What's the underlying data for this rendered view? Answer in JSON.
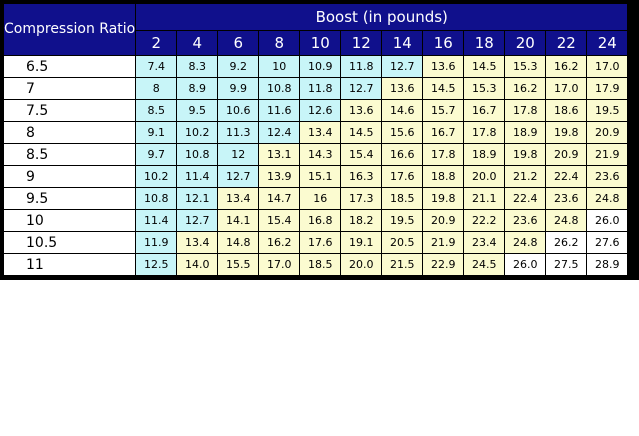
{
  "chart_data": {
    "type": "table",
    "row_header": "Compression Ratio",
    "column_group_header": "Boost (in pounds)",
    "columns": [
      "2",
      "4",
      "6",
      "8",
      "10",
      "12",
      "14",
      "16",
      "18",
      "20",
      "22",
      "24"
    ],
    "rows": [
      {
        "label": "6.5",
        "values": [
          "7.4",
          "8.3",
          "9.2",
          "10",
          "10.9",
          "11.8",
          "12.7",
          "13.6",
          "14.5",
          "15.3",
          "16.2",
          "17.0"
        ]
      },
      {
        "label": "7",
        "values": [
          "8",
          "8.9",
          "9.9",
          "10.8",
          "11.8",
          "12.7",
          "13.6",
          "14.5",
          "15.3",
          "16.2",
          "17.0",
          "17.9"
        ]
      },
      {
        "label": "7.5",
        "values": [
          "8.5",
          "9.5",
          "10.6",
          "11.6",
          "12.6",
          "13.6",
          "14.6",
          "15.7",
          "16.7",
          "17.8",
          "18.6",
          "19.5"
        ]
      },
      {
        "label": "8",
        "values": [
          "9.1",
          "10.2",
          "11.3",
          "12.4",
          "13.4",
          "14.5",
          "15.6",
          "16.7",
          "17.8",
          "18.9",
          "19.8",
          "20.9"
        ]
      },
      {
        "label": "8.5",
        "values": [
          "9.7",
          "10.8",
          "12",
          "13.1",
          "14.3",
          "15.4",
          "16.6",
          "17.8",
          "18.9",
          "19.8",
          "20.9",
          "21.9"
        ]
      },
      {
        "label": "9",
        "values": [
          "10.2",
          "11.4",
          "12.7",
          "13.9",
          "15.1",
          "16.3",
          "17.6",
          "18.8",
          "20.0",
          "21.2",
          "22.4",
          "23.6"
        ]
      },
      {
        "label": "9.5",
        "values": [
          "10.8",
          "12.1",
          "13.4",
          "14.7",
          "16",
          "17.3",
          "18.5",
          "19.8",
          "21.1",
          "22.4",
          "23.6",
          "24.8"
        ]
      },
      {
        "label": "10",
        "values": [
          "11.4",
          "12.7",
          "14.1",
          "15.4",
          "16.8",
          "18.2",
          "19.5",
          "20.9",
          "22.2",
          "23.6",
          "24.8",
          "26.0"
        ]
      },
      {
        "label": "10.5",
        "values": [
          "11.9",
          "13.4",
          "14.8",
          "16.2",
          "17.6",
          "19.1",
          "20.5",
          "21.9",
          "23.4",
          "24.8",
          "26.2",
          "27.6"
        ]
      },
      {
        "label": "11",
        "values": [
          "12.5",
          "14.0",
          "15.5",
          "17.0",
          "18.5",
          "20.0",
          "21.5",
          "22.9",
          "24.5",
          "26.0",
          "27.5",
          "28.9"
        ]
      }
    ],
    "colors": {
      "header": "#10108c",
      "low": "#c8f5f8",
      "mid": "#fbfbd0",
      "high": "#ffffff"
    },
    "color_bands": {
      "low_below": 13,
      "high_from": 26
    }
  }
}
